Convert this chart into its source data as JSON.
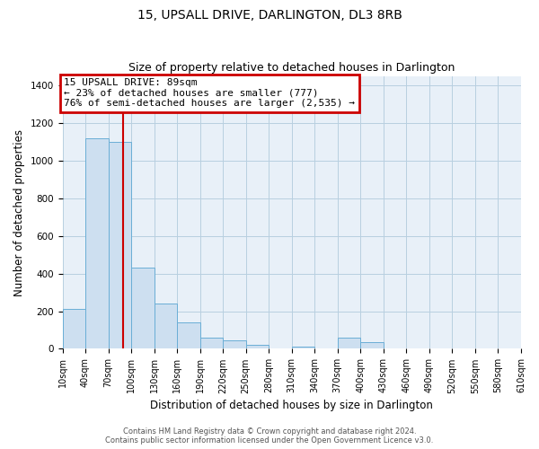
{
  "title": "15, UPSALL DRIVE, DARLINGTON, DL3 8RB",
  "subtitle": "Size of property relative to detached houses in Darlington",
  "xlabel": "Distribution of detached houses by size in Darlington",
  "ylabel": "Number of detached properties",
  "bin_starts": [
    10,
    40,
    70,
    100,
    130,
    160,
    190,
    220,
    250,
    280,
    310,
    340,
    370,
    400,
    430,
    460,
    490,
    520,
    550,
    580
  ],
  "bar_heights": [
    210,
    1120,
    1100,
    430,
    240,
    140,
    60,
    45,
    20,
    0,
    10,
    0,
    60,
    35,
    0,
    0,
    0,
    0,
    0,
    0
  ],
  "bin_width": 30,
  "bar_color": "#cddff0",
  "bar_edge_color": "#6aaed6",
  "vline_x": 89,
  "vline_color": "#cc0000",
  "annotation_title": "15 UPSALL DRIVE: 89sqm",
  "annotation_line1": "← 23% of detached houses are smaller (777)",
  "annotation_line2": "76% of semi-detached houses are larger (2,535) →",
  "annotation_box_color": "#cc0000",
  "ylim": [
    0,
    1450
  ],
  "yticks": [
    0,
    200,
    400,
    600,
    800,
    1000,
    1200,
    1400
  ],
  "xlim_left": 10,
  "xlim_right": 610,
  "tick_positions": [
    10,
    40,
    70,
    100,
    130,
    160,
    190,
    220,
    250,
    280,
    310,
    340,
    370,
    400,
    430,
    460,
    490,
    520,
    550,
    580,
    610
  ],
  "tick_labels": [
    "10sqm",
    "40sqm",
    "70sqm",
    "100sqm",
    "130sqm",
    "160sqm",
    "190sqm",
    "220sqm",
    "250sqm",
    "280sqm",
    "310sqm",
    "340sqm",
    "370sqm",
    "400sqm",
    "430sqm",
    "460sqm",
    "490sqm",
    "520sqm",
    "550sqm",
    "580sqm",
    "610sqm"
  ],
  "footer1": "Contains HM Land Registry data © Crown copyright and database right 2024.",
  "footer2": "Contains public sector information licensed under the Open Government Licence v3.0.",
  "bg_color": "#ffffff",
  "plot_bg_color": "#e8f0f8",
  "grid_color": "#b8cfe0",
  "title_fontsize": 10,
  "subtitle_fontsize": 9,
  "axis_label_fontsize": 8.5,
  "tick_fontsize": 7,
  "footer_fontsize": 6,
  "annotation_fontsize": 8
}
